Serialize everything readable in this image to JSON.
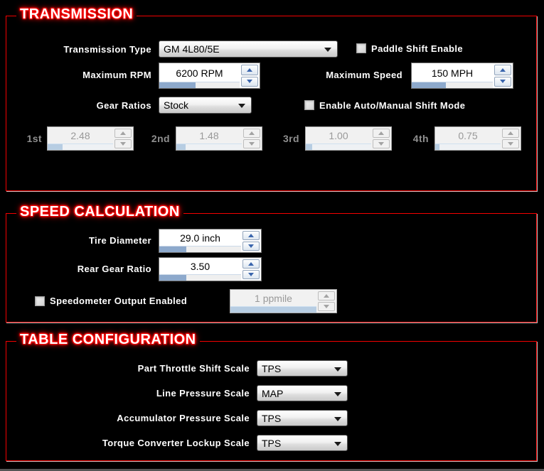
{
  "transmission": {
    "title": "TRANSMISSION",
    "transmission_type": {
      "label": "Transmission Type",
      "value": "GM 4L80/5E"
    },
    "paddle_shift": {
      "label": "Paddle Shift Enable",
      "checked": false
    },
    "maximum_rpm": {
      "label": "Maximum RPM",
      "value": "6200 RPM",
      "fill_pct": 45
    },
    "maximum_speed": {
      "label": "Maximum Speed",
      "value": "150 MPH",
      "fill_pct": 42
    },
    "gear_ratios": {
      "label": "Gear Ratios",
      "value": "Stock"
    },
    "auto_manual": {
      "label": "Enable Auto/Manual Shift Mode",
      "checked": false
    },
    "gears": [
      {
        "label": "1st",
        "value": "2.48",
        "fill_pct": 23
      },
      {
        "label": "2nd",
        "value": "1.48",
        "fill_pct": 14
      },
      {
        "label": "3rd",
        "value": "1.00",
        "fill_pct": 10
      },
      {
        "label": "4th",
        "value": "0.75",
        "fill_pct": 7
      }
    ]
  },
  "speed_calculation": {
    "title": "SPEED CALCULATION",
    "tire_diameter": {
      "label": "Tire Diameter",
      "value": "29.0 inch",
      "fill_pct": 33
    },
    "rear_gear_ratio": {
      "label": "Rear Gear Ratio",
      "value": "3.50",
      "fill_pct": 33
    },
    "speedometer": {
      "label": "Speedometer Output Enabled",
      "checked": false,
      "value": "1 ppmile",
      "fill_pct": 100
    }
  },
  "table_configuration": {
    "title": "TABLE CONFIGURATION",
    "rows": [
      {
        "label": "Part Throttle Shift Scale",
        "value": "TPS"
      },
      {
        "label": "Line Pressure Scale",
        "value": "MAP"
      },
      {
        "label": "Accumulator Pressure Scale",
        "value": "TPS"
      },
      {
        "label": "Torque Converter Lockup Scale",
        "value": "TPS"
      }
    ]
  },
  "colors": {
    "section_border": "#f40000",
    "title_glow": "#ff0000",
    "progress_fill": "#8da9cc",
    "disabled_fill": "#b7cde2",
    "spin_arrow": "#3a65ad"
  }
}
